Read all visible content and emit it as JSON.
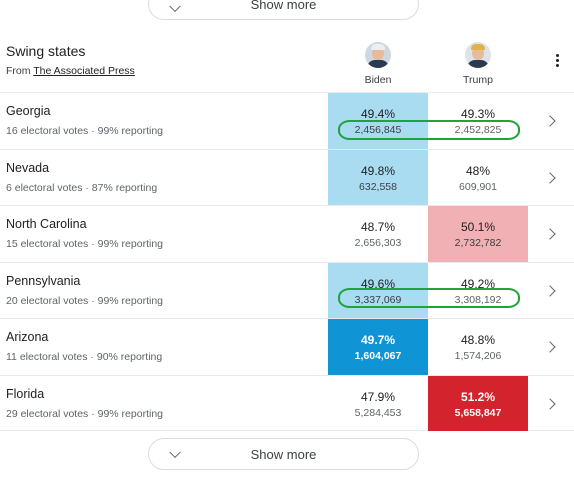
{
  "top_show_more": {
    "label": "Show more"
  },
  "bottom_show_more": {
    "label": "Show more"
  },
  "header": {
    "title": "Swing states",
    "source_prefix": "From ",
    "source_link": "The Associated Press"
  },
  "candidates": [
    {
      "name": "Biden"
    },
    {
      "name": "Trump"
    }
  ],
  "rows": [
    {
      "state": "Georgia",
      "meta": "16 electoral votes · 99% reporting",
      "biden": {
        "pct": "49.4%",
        "votes": "2,456,845"
      },
      "trump": {
        "pct": "49.3%",
        "votes": "2,452,825"
      }
    },
    {
      "state": "Nevada",
      "meta": "6 electoral votes · 87% reporting",
      "biden": {
        "pct": "49.8%",
        "votes": "632,558"
      },
      "trump": {
        "pct": "48%",
        "votes": "609,901"
      }
    },
    {
      "state": "North Carolina",
      "meta": "15 electoral votes · 99% reporting",
      "biden": {
        "pct": "48.7%",
        "votes": "2,656,303"
      },
      "trump": {
        "pct": "50.1%",
        "votes": "2,732,782"
      }
    },
    {
      "state": "Pennsylvania",
      "meta": "20 electoral votes · 99% reporting",
      "biden": {
        "pct": "49.6%",
        "votes": "3,337,069"
      },
      "trump": {
        "pct": "49.2%",
        "votes": "3,308,192"
      }
    },
    {
      "state": "Arizona",
      "meta": "11 electoral votes · 90% reporting",
      "biden": {
        "pct": "49.7%",
        "votes": "1,604,067"
      },
      "trump": {
        "pct": "48.8%",
        "votes": "1,574,206"
      }
    },
    {
      "state": "Florida",
      "meta": "29 electoral votes · 99% reporting",
      "biden": {
        "pct": "47.9%",
        "votes": "5,284,453"
      },
      "trump": {
        "pct": "51.2%",
        "votes": "5,658,847"
      }
    }
  ],
  "colors": {
    "lead_blue_light": "#aadcf1",
    "lead_red_light": "#f1b0b3",
    "win_blue": "#0f95d6",
    "win_red": "#d3232d",
    "annotation_green": "#1fa33a"
  },
  "icons": {
    "show_more": "chevron-down-icon",
    "row_arrow": "chevron-right-icon",
    "menu": "more-vert-icon"
  }
}
